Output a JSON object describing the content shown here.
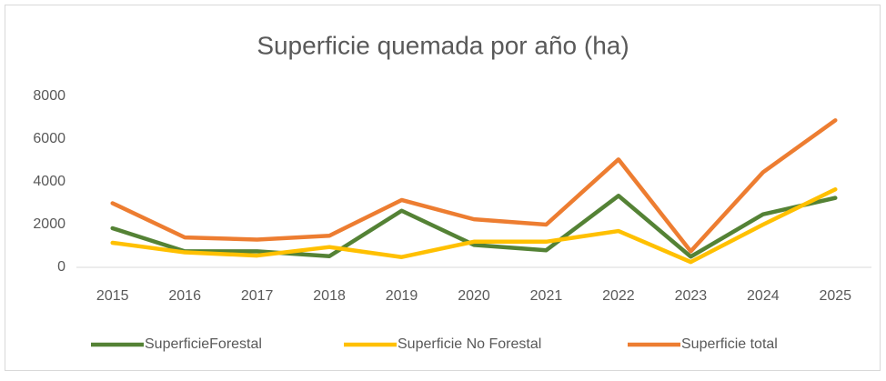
{
  "chart_data": {
    "type": "line",
    "title": "Superficie quemada por año (ha)",
    "categories": [
      "2015",
      "2016",
      "2017",
      "2018",
      "2019",
      "2020",
      "2021",
      "2022",
      "2023",
      "2024",
      "2025"
    ],
    "series": [
      {
        "name": "SuperficieForestal",
        "color": "#548235",
        "values": [
          1830,
          750,
          750,
          520,
          2650,
          1050,
          800,
          3350,
          500,
          2480,
          3250
        ]
      },
      {
        "name": "Superficie No Forestal",
        "color": "#ffc000",
        "values": [
          1150,
          700,
          550,
          950,
          480,
          1200,
          1200,
          1700,
          250,
          2000,
          3650
        ]
      },
      {
        "name": "Superficie total",
        "color": "#ed7d31",
        "values": [
          3000,
          1400,
          1300,
          1480,
          3150,
          2250,
          2000,
          5050,
          750,
          4450,
          6880
        ]
      }
    ],
    "ylim": [
      0,
      8000
    ],
    "yticks": [
      0,
      2000,
      4000,
      6000,
      8000
    ],
    "grid": false,
    "legend": "bottom"
  }
}
